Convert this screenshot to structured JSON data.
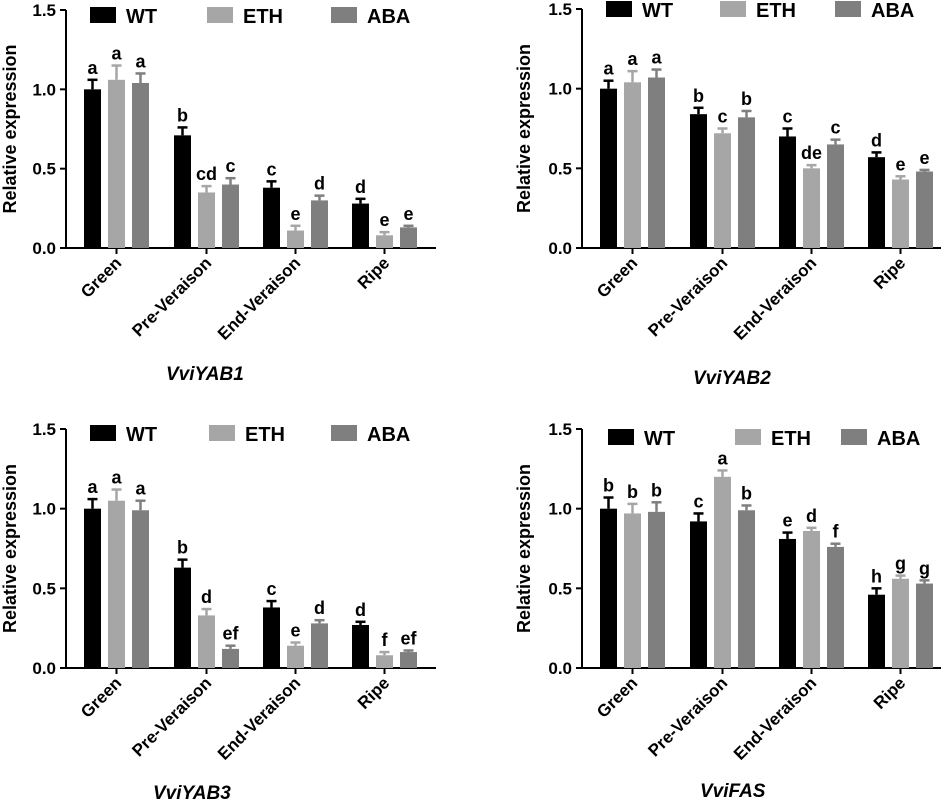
{
  "chart_data": [
    {
      "type": "bar",
      "title": "VviYAB1",
      "ylabel": "Relative expression",
      "xlabel": "",
      "ylim": [
        0,
        1.5
      ],
      "yticks": [
        "0.0",
        "0.5",
        "1.0",
        "1.5"
      ],
      "categories": [
        "Green",
        "Pre-Veraison",
        "End-Veraison",
        "Ripe"
      ],
      "legend": "top",
      "series": [
        {
          "name": "WT",
          "color": "#000000",
          "values": [
            1.0,
            0.71,
            0.38,
            0.28
          ],
          "errors": [
            0.06,
            0.05,
            0.04,
            0.03
          ],
          "labels": [
            "a",
            "b",
            "c",
            "d"
          ]
        },
        {
          "name": "ETH",
          "color": "#a6a6a6",
          "values": [
            1.06,
            0.35,
            0.11,
            0.08
          ],
          "errors": [
            0.09,
            0.04,
            0.03,
            0.02
          ],
          "labels": [
            "a",
            "cd",
            "e",
            "e"
          ]
        },
        {
          "name": "ABA",
          "color": "#7f7f7f",
          "values": [
            1.04,
            0.4,
            0.3,
            0.13
          ],
          "errors": [
            0.06,
            0.04,
            0.03,
            0.01
          ],
          "labels": [
            "a",
            "c",
            "d",
            "e"
          ]
        }
      ]
    },
    {
      "type": "bar",
      "title": "VviYAB2",
      "ylabel": "Relative expression",
      "xlabel": "",
      "ylim": [
        0,
        1.5
      ],
      "yticks": [
        "0.0",
        "0.5",
        "1.0",
        "1.5"
      ],
      "categories": [
        "Green",
        "Pre-Veraison",
        "End-Veraison",
        "Ripe"
      ],
      "legend": "top",
      "series": [
        {
          "name": "WT",
          "color": "#000000",
          "values": [
            1.0,
            0.84,
            0.7,
            0.57
          ],
          "errors": [
            0.05,
            0.04,
            0.05,
            0.03
          ],
          "labels": [
            "a",
            "b",
            "c",
            "d"
          ]
        },
        {
          "name": "ETH",
          "color": "#a6a6a6",
          "values": [
            1.04,
            0.72,
            0.5,
            0.43
          ],
          "errors": [
            0.07,
            0.03,
            0.02,
            0.02
          ],
          "labels": [
            "a",
            "c",
            "de",
            "e"
          ]
        },
        {
          "name": "ABA",
          "color": "#7f7f7f",
          "values": [
            1.07,
            0.82,
            0.65,
            0.48
          ],
          "errors": [
            0.05,
            0.04,
            0.03,
            0.01
          ],
          "labels": [
            "a",
            "b",
            "c",
            "e"
          ]
        }
      ]
    },
    {
      "type": "bar",
      "title": "VviYAB3",
      "ylabel": "Relative expression",
      "xlabel": "",
      "ylim": [
        0,
        1.5
      ],
      "yticks": [
        "0.0",
        "0.5",
        "1.0",
        "1.5"
      ],
      "categories": [
        "Green",
        "Pre-Veraison",
        "End-Veraison",
        "Ripe"
      ],
      "legend": "top",
      "series": [
        {
          "name": "WT",
          "color": "#000000",
          "values": [
            1.0,
            0.63,
            0.38,
            0.27
          ],
          "errors": [
            0.06,
            0.05,
            0.04,
            0.02
          ],
          "labels": [
            "a",
            "b",
            "c",
            "d"
          ]
        },
        {
          "name": "ETH",
          "color": "#a6a6a6",
          "values": [
            1.05,
            0.33,
            0.14,
            0.08
          ],
          "errors": [
            0.07,
            0.04,
            0.02,
            0.02
          ],
          "labels": [
            "a",
            "d",
            "e",
            "f"
          ]
        },
        {
          "name": "ABA",
          "color": "#7f7f7f",
          "values": [
            0.99,
            0.12,
            0.28,
            0.1
          ],
          "errors": [
            0.06,
            0.02,
            0.02,
            0.01
          ],
          "labels": [
            "a",
            "ef",
            "d",
            "ef"
          ]
        }
      ]
    },
    {
      "type": "bar",
      "title": "VviFAS",
      "ylabel": "Relative expression",
      "xlabel": "",
      "ylim": [
        0,
        1.5
      ],
      "yticks": [
        "0.0",
        "0.5",
        "1.0",
        "1.5"
      ],
      "categories": [
        "Green",
        "Pre-Veraison",
        "End-Veraison",
        "Ripe"
      ],
      "legend": "top",
      "series": [
        {
          "name": "WT",
          "color": "#000000",
          "values": [
            1.0,
            0.92,
            0.81,
            0.46
          ],
          "errors": [
            0.07,
            0.05,
            0.04,
            0.04
          ],
          "labels": [
            "b",
            "c",
            "e",
            "h"
          ]
        },
        {
          "name": "ETH",
          "color": "#a6a6a6",
          "values": [
            0.97,
            1.2,
            0.86,
            0.56
          ],
          "errors": [
            0.06,
            0.04,
            0.02,
            0.02
          ],
          "labels": [
            "b",
            "a",
            "d",
            "g"
          ]
        },
        {
          "name": "ABA",
          "color": "#7f7f7f",
          "values": [
            0.98,
            0.99,
            0.76,
            0.53
          ],
          "errors": [
            0.06,
            0.03,
            0.02,
            0.02
          ],
          "labels": [
            "b",
            "b",
            "f",
            "g"
          ]
        }
      ]
    }
  ]
}
